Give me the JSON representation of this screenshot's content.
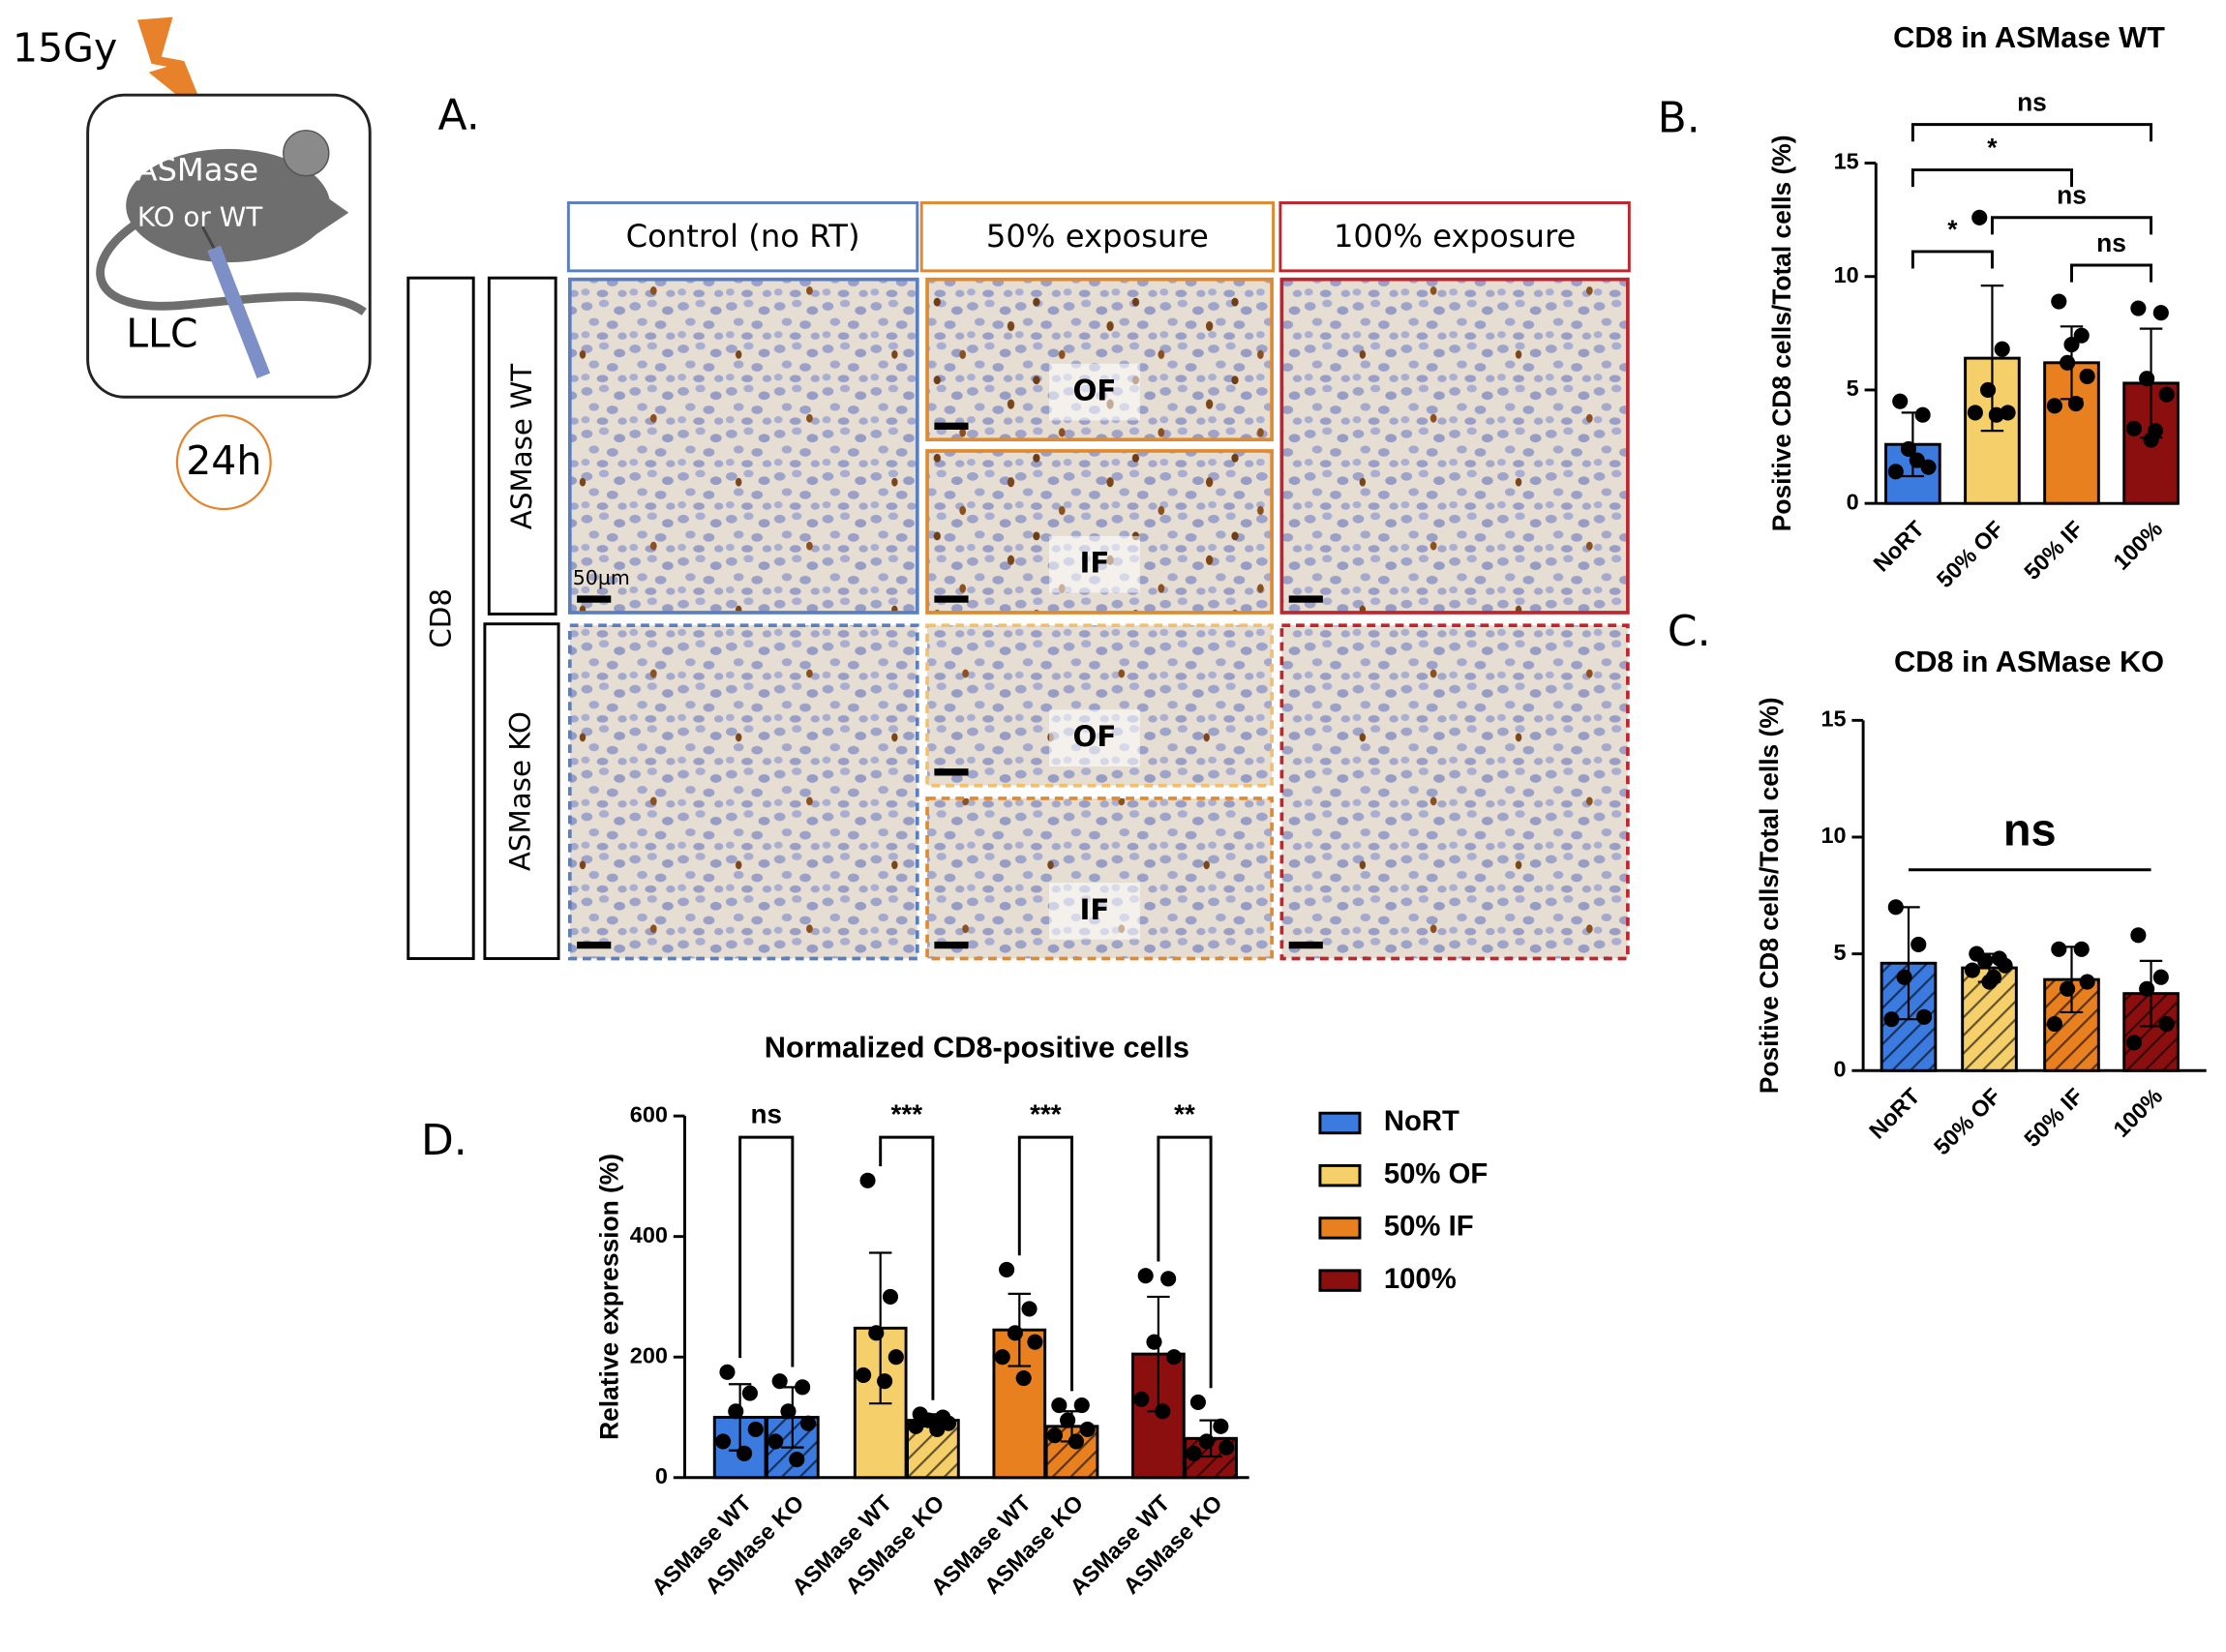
{
  "schematic": {
    "dose": "15Gy",
    "model": "ASMase",
    "genotype": "KO or WT",
    "tumor": "LLC",
    "time": "24h"
  },
  "panel_labels": [
    "A.",
    "B.",
    "C.",
    "D."
  ],
  "panel_a": {
    "columns": [
      "Control (no RT)",
      "50% exposure",
      "100% exposure"
    ],
    "marker": "CD8",
    "rows": [
      "ASMase WT",
      "ASMase KO"
    ],
    "regions": [
      "OF",
      "IF"
    ],
    "scale_bar": "50µm"
  },
  "chart_data": [
    {
      "type": "bar",
      "title": "CD8 in ASMase WT",
      "y_label": "Positive CD8 cells/Total cells (%)",
      "categories": [
        "NoRT",
        "50% OF",
        "50% IF",
        "100%"
      ],
      "values": [
        2.6,
        6.4,
        6.2,
        5.3
      ],
      "errors": [
        1.4,
        3.2,
        1.6,
        2.4
      ],
      "points": [
        [
          4.5,
          3.9,
          2.4,
          1.6,
          1.4,
          1.9
        ],
        [
          12.6,
          6.8,
          5.0,
          4.0,
          4.0,
          3.9
        ],
        [
          8.9,
          7.4,
          6.2,
          5.6,
          4.3,
          4.4,
          7.0
        ],
        [
          8.6,
          8.4,
          5.5,
          4.8,
          3.3,
          3.2,
          2.8
        ]
      ],
      "colors": [
        "#3b7be0",
        "#f5cf6a",
        "#e8801f",
        "#8b0f0f"
      ],
      "hatched": false,
      "ylim": [
        0,
        15
      ],
      "yticks": [
        0,
        5,
        10,
        15
      ],
      "comparisons": [
        {
          "pair": [
            "NoRT",
            "100%"
          ],
          "label": "ns"
        },
        {
          "pair": [
            "NoRT",
            "50% IF"
          ],
          "label": "*"
        },
        {
          "pair": [
            "50% OF",
            "100%"
          ],
          "label": "ns"
        },
        {
          "pair": [
            "NoRT",
            "50% OF"
          ],
          "label": "*"
        },
        {
          "pair": [
            "50% IF",
            "100%"
          ],
          "label": "ns"
        }
      ]
    },
    {
      "type": "bar",
      "title": "CD8 in ASMase KO",
      "y_label": "Positive CD8 cells/Total cells (%)",
      "categories": [
        "NoRT",
        "50% OF",
        "50% IF",
        "100%"
      ],
      "values": [
        4.6,
        4.4,
        3.9,
        3.3
      ],
      "errors": [
        2.4,
        0.6,
        1.4,
        1.4
      ],
      "points": [
        [
          7.0,
          5.4,
          4.0,
          2.3,
          2.2
        ],
        [
          5.0,
          4.8,
          4.7,
          4.5,
          4.3,
          4.0,
          3.8
        ],
        [
          5.2,
          5.2,
          3.5,
          3.8,
          2.0
        ],
        [
          5.8,
          4.0,
          3.5,
          2.0,
          1.2
        ]
      ],
      "colors": [
        "#3b7be0",
        "#f5cf6a",
        "#e8801f",
        "#8b0f0f"
      ],
      "hatched": true,
      "ylim": [
        0,
        15
      ],
      "yticks": [
        0,
        5,
        10,
        15
      ],
      "comparisons": [
        {
          "pair": [
            "NoRT",
            "100%"
          ],
          "label": "ns"
        }
      ]
    },
    {
      "type": "bar",
      "title": "Normalized CD8-positive cells",
      "y_label": "Relative expression (%)",
      "categories": [
        "ASMase WT",
        "ASMase KO"
      ],
      "hatched": [
        false,
        true
      ],
      "series": [
        {
          "name": "NoRT",
          "color": "#3b7be0",
          "values": [
            100,
            100
          ],
          "errors": [
            55,
            50
          ],
          "points": [
            [
              175,
              140,
              110,
              80,
              60,
              40
            ],
            [
              160,
              150,
              110,
              90,
              60,
              30
            ]
          ]
        },
        {
          "name": "50% OF",
          "color": "#f5cf6a",
          "values": [
            248,
            95
          ],
          "errors": [
            125,
            10
          ],
          "points": [
            [
              493,
              300,
              240,
              200,
              170,
              160
            ],
            [
              105,
              100,
              95,
              90,
              85,
              80
            ]
          ]
        },
        {
          "name": "50% IF",
          "color": "#e8801f",
          "values": [
            245,
            85
          ],
          "errors": [
            60,
            25
          ],
          "points": [
            [
              345,
              280,
              240,
              225,
              200,
              165
            ],
            [
              120,
              120,
              95,
              80,
              70,
              60
            ]
          ]
        },
        {
          "name": "100%",
          "color": "#8b0f0f",
          "values": [
            205,
            65
          ],
          "errors": [
            95,
            30
          ],
          "points": [
            [
              335,
              330,
              225,
              200,
              130,
              110
            ],
            [
              125,
              85,
              60,
              50,
              40
            ]
          ]
        }
      ],
      "significance": [
        "ns",
        "***",
        "***",
        "**"
      ],
      "ylim": [
        0,
        600
      ],
      "yticks": [
        0,
        200,
        400,
        600
      ],
      "legend": "right"
    }
  ]
}
